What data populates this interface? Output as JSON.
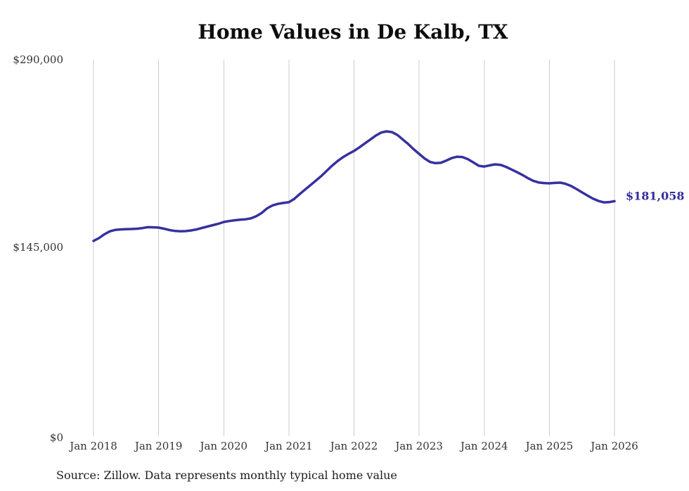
{
  "title_text": "Home Values in De Kalb, TX",
  "source_note": "Source: Zillow. Data represents monthly typical home value",
  "end_label": "$181,058",
  "colors": {
    "line": "#3531a0",
    "grid": "#cccccc",
    "axis_text": "#333333",
    "title_text": "#0d0d0d",
    "source_text": "#1c1c1c",
    "end_label_text": "#312d9e",
    "background": "#ffffff"
  },
  "chart_data": {
    "type": "line",
    "title": "Home Values in De Kalb, TX",
    "xlabel": "",
    "ylabel": "",
    "ylim": [
      0,
      290000
    ],
    "y_tick_labels": [
      "$0",
      "$145,000",
      "$290,000"
    ],
    "y_tick_values": [
      0,
      145000,
      290000
    ],
    "x_tick_labels": [
      "Jan 2018",
      "Jan 2019",
      "Jan 2020",
      "Jan 2021",
      "Jan 2022",
      "Jan 2023",
      "Jan 2024",
      "Jan 2025",
      "Jan 2026"
    ],
    "grid": "vertical-only",
    "legend": "none",
    "points_per_month": 1,
    "x_start": "Jan 2018",
    "x_end": "Jan 2026",
    "final_value": 181058,
    "final_value_label": "$181,058",
    "series": [
      {
        "name": "Typical home value",
        "values": [
          150400,
          152600,
          155500,
          157800,
          158900,
          159300,
          159500,
          159600,
          159800,
          160300,
          161000,
          160900,
          160700,
          159800,
          158800,
          158100,
          157900,
          158000,
          158500,
          159300,
          160400,
          161500,
          162600,
          163600,
          165000,
          165700,
          166300,
          166800,
          167100,
          167800,
          169500,
          172000,
          175500,
          177800,
          179000,
          179700,
          180200,
          182800,
          186500,
          190000,
          193500,
          197000,
          200500,
          204500,
          208500,
          212000,
          215000,
          217500,
          219700,
          222500,
          225500,
          228500,
          231500,
          233900,
          234800,
          234200,
          232000,
          228500,
          225000,
          221000,
          217500,
          214000,
          211300,
          210300,
          210600,
          212300,
          214200,
          215300,
          215000,
          213400,
          210900,
          208300,
          207700,
          208600,
          209400,
          209000,
          207500,
          205500,
          203500,
          201300,
          198900,
          196800,
          195500,
          195000,
          194800,
          195100,
          195300,
          194400,
          192700,
          190400,
          187900,
          185400,
          183100,
          181300,
          180100,
          180300,
          181058
        ]
      }
    ]
  }
}
